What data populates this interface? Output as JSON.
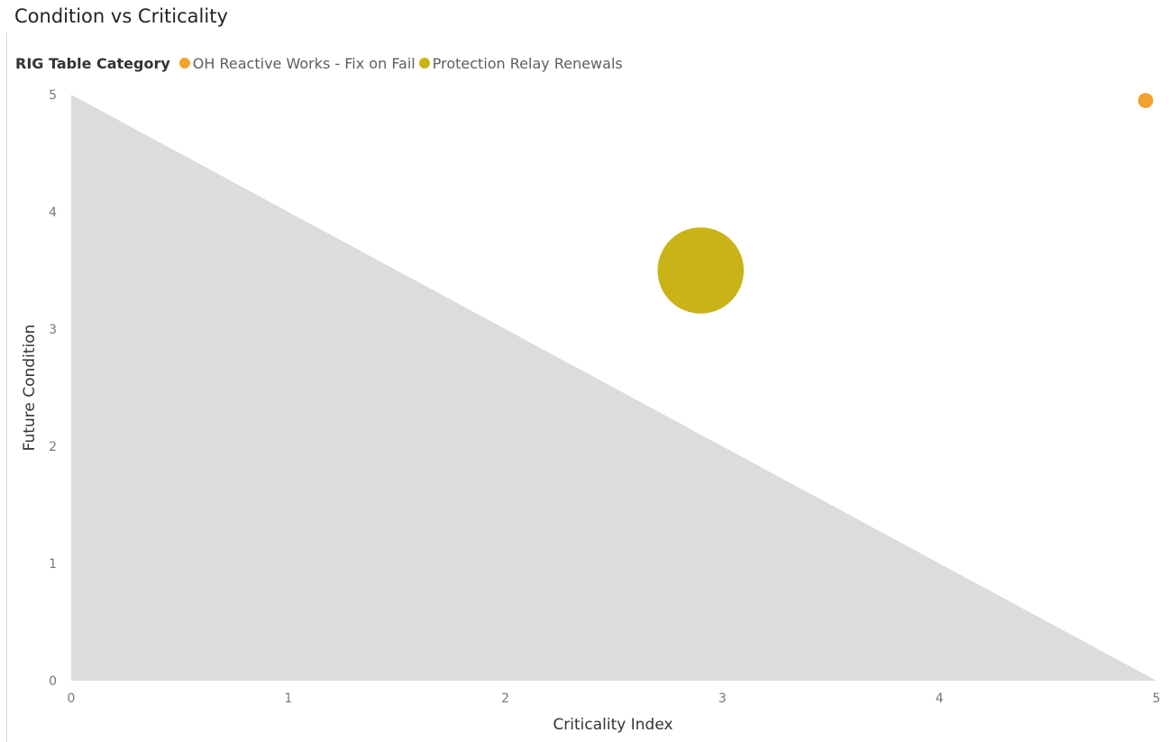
{
  "chart_data": {
    "type": "scatter",
    "title": "Condition vs Criticality",
    "xlabel": "Criticality Index",
    "ylabel": "Future Condition",
    "xlim": [
      0,
      5
    ],
    "ylim": [
      0,
      5
    ],
    "xticks": [
      "0",
      "1",
      "2",
      "3",
      "4",
      "5"
    ],
    "yticks": [
      "0",
      "1",
      "2",
      "3",
      "4",
      "5"
    ],
    "grid": false,
    "legend": {
      "title": "RIG Table Category",
      "placement": "top-left"
    },
    "background_area": {
      "x": [
        0,
        5
      ],
      "y": [
        5,
        0
      ],
      "color": "#dcdcdc"
    },
    "series": [
      {
        "name": "OH Reactive Works - Fix on Fail",
        "color": "#f2a22e",
        "points": [
          {
            "x": 4.95,
            "y": 4.95,
            "size": 1
          }
        ]
      },
      {
        "name": "Protection Relay Renewals",
        "color": "#c9b316",
        "points": [
          {
            "x": 2.9,
            "y": 3.5,
            "size": 12
          }
        ]
      }
    ]
  }
}
